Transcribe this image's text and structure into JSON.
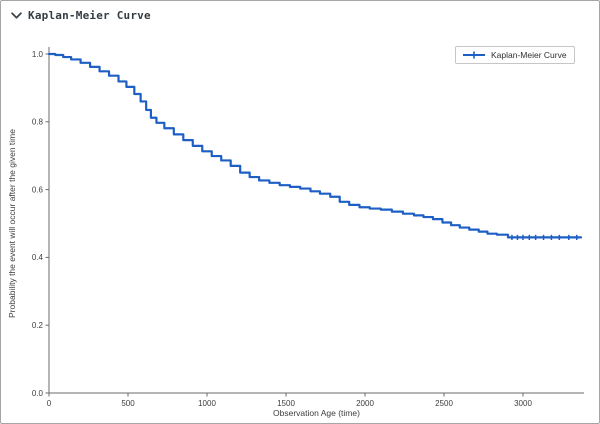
{
  "header": {
    "title": "Kaplan-Meier Curve",
    "chevron_icon": "chevron-down-icon"
  },
  "colors": {
    "curve": "#1d5fc4",
    "spine": "#6b6b6b",
    "tick_label": "#3d3d3d",
    "axis_label": "#3d3d3d",
    "header_text": "#333c43",
    "panel_border": "#a6a6a6",
    "legend_border": "#c6c6c6"
  },
  "chart_data": {
    "type": "line",
    "step": "post",
    "title": "",
    "xlabel": "Observation Age (time)",
    "ylabel": "Probability the event will occur after the given time",
    "xlim": [
      0,
      3386
    ],
    "ylim": [
      0.0,
      1.0
    ],
    "xticks": [
      0,
      500,
      1000,
      1500,
      2000,
      2500,
      3000
    ],
    "yticks": [
      0.0,
      0.2,
      0.4,
      0.6,
      0.8,
      1.0
    ],
    "grid": false,
    "legend": {
      "label": "Kaplan-Meier Curve",
      "position": "upper right"
    },
    "series": [
      {
        "name": "Kaplan-Meier Curve",
        "color": "#1d5fc4",
        "points": [
          [
            0,
            1.0
          ],
          [
            40,
            0.997
          ],
          [
            90,
            0.991
          ],
          [
            140,
            0.984
          ],
          [
            200,
            0.974
          ],
          [
            260,
            0.962
          ],
          [
            320,
            0.949
          ],
          [
            380,
            0.936
          ],
          [
            440,
            0.919
          ],
          [
            490,
            0.903
          ],
          [
            540,
            0.882
          ],
          [
            580,
            0.86
          ],
          [
            615,
            0.835
          ],
          [
            645,
            0.812
          ],
          [
            680,
            0.797
          ],
          [
            730,
            0.781
          ],
          [
            790,
            0.763
          ],
          [
            850,
            0.746
          ],
          [
            910,
            0.729
          ],
          [
            970,
            0.713
          ],
          [
            1030,
            0.699
          ],
          [
            1090,
            0.686
          ],
          [
            1150,
            0.67
          ],
          [
            1210,
            0.65
          ],
          [
            1270,
            0.637
          ],
          [
            1330,
            0.627
          ],
          [
            1395,
            0.62
          ],
          [
            1460,
            0.613
          ],
          [
            1525,
            0.608
          ],
          [
            1590,
            0.603
          ],
          [
            1655,
            0.595
          ],
          [
            1715,
            0.588
          ],
          [
            1780,
            0.579
          ],
          [
            1840,
            0.564
          ],
          [
            1900,
            0.555
          ],
          [
            1965,
            0.548
          ],
          [
            2030,
            0.544
          ],
          [
            2100,
            0.541
          ],
          [
            2170,
            0.535
          ],
          [
            2240,
            0.529
          ],
          [
            2310,
            0.524
          ],
          [
            2370,
            0.519
          ],
          [
            2430,
            0.513
          ],
          [
            2490,
            0.503
          ],
          [
            2545,
            0.495
          ],
          [
            2600,
            0.488
          ],
          [
            2660,
            0.482
          ],
          [
            2720,
            0.476
          ],
          [
            2775,
            0.47
          ],
          [
            2835,
            0.467
          ],
          [
            2905,
            0.459
          ],
          [
            3367,
            0.459
          ]
        ],
        "censor_marks": [
          [
            2930,
            0.459
          ],
          [
            2965,
            0.459
          ],
          [
            3000,
            0.459
          ],
          [
            3040,
            0.459
          ],
          [
            3080,
            0.459
          ],
          [
            3130,
            0.459
          ],
          [
            3180,
            0.459
          ],
          [
            3230,
            0.459
          ],
          [
            3290,
            0.459
          ],
          [
            3340,
            0.459
          ]
        ]
      }
    ]
  }
}
